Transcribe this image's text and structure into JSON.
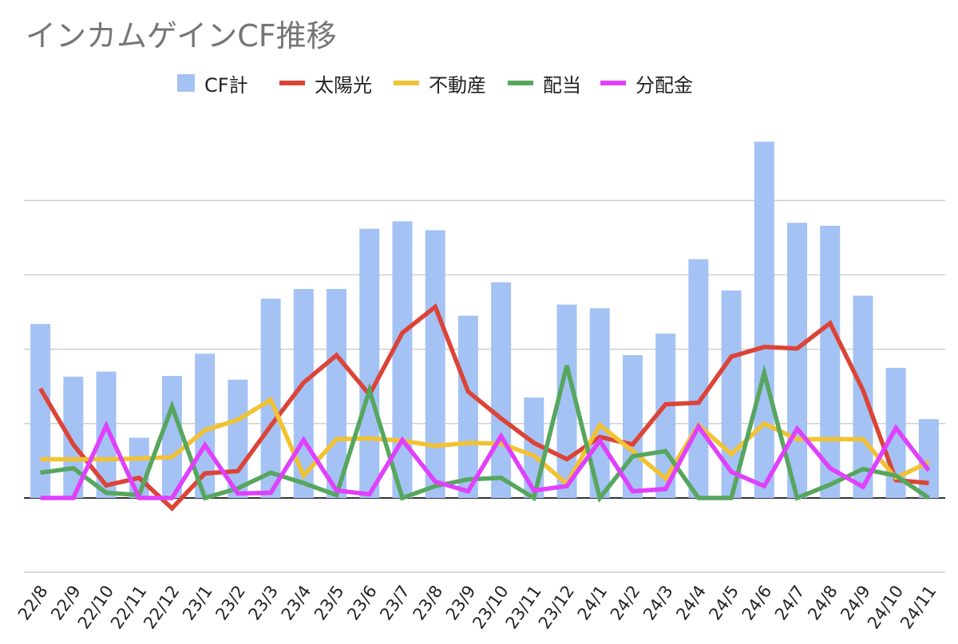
{
  "chart_data": {
    "type": "bar",
    "title": "インカムゲインCF推移",
    "xlabel": "",
    "ylabel": "",
    "ylim": [
      -1,
      4.9
    ],
    "grid": true,
    "y_tick_labels_shown": false,
    "legend_position": "top",
    "categories": [
      "22/8",
      "22/9",
      "22/10",
      "22/11",
      "22/12",
      "23/1",
      "23/2",
      "23/3",
      "23/4",
      "23/5",
      "23/6",
      "23/7",
      "23/8",
      "23/9",
      "23/10",
      "23/11",
      "23/12",
      "24/1",
      "24/2",
      "24/3",
      "24/4",
      "24/5",
      "24/6",
      "24/7",
      "24/8",
      "24/9",
      "24/10",
      "24/11"
    ],
    "series": [
      {
        "name": "CF計",
        "type": "bar",
        "color": "#a4c2f4",
        "values": [
          2.34,
          1.63,
          1.7,
          0.81,
          1.64,
          1.94,
          1.59,
          2.68,
          2.81,
          2.81,
          3.62,
          3.72,
          3.6,
          2.45,
          2.9,
          1.35,
          2.6,
          2.55,
          1.92,
          2.21,
          3.21,
          2.79,
          4.79,
          3.7,
          3.66,
          2.72,
          1.75,
          1.06
        ]
      },
      {
        "name": "太陽光",
        "type": "line",
        "color": "#db4437",
        "values": [
          1.47,
          0.72,
          0.17,
          0.27,
          -0.14,
          0.33,
          0.36,
          0.97,
          1.55,
          1.92,
          1.39,
          2.22,
          2.57,
          1.43,
          1.07,
          0.74,
          0.52,
          0.82,
          0.72,
          1.26,
          1.28,
          1.9,
          2.03,
          2.01,
          2.35,
          1.45,
          0.24,
          0.2
        ]
      },
      {
        "name": "不動産",
        "type": "line",
        "color": "#f1c232",
        "values": [
          0.52,
          0.52,
          0.52,
          0.53,
          0.55,
          0.91,
          1.05,
          1.32,
          0.3,
          0.79,
          0.8,
          0.77,
          0.7,
          0.74,
          0.73,
          0.57,
          0.19,
          0.98,
          0.63,
          0.26,
          0.98,
          0.59,
          1.0,
          0.79,
          0.79,
          0.79,
          0.27,
          0.48
        ]
      },
      {
        "name": "配当",
        "type": "line",
        "color": "#57a65e",
        "values": [
          0.34,
          0.4,
          0.07,
          0.04,
          1.23,
          0.0,
          0.13,
          0.34,
          0.2,
          0.04,
          1.45,
          0.0,
          0.16,
          0.25,
          0.27,
          0.0,
          1.78,
          0.0,
          0.56,
          0.63,
          0.0,
          0.0,
          1.68,
          0.0,
          0.18,
          0.39,
          0.3,
          0.0
        ]
      },
      {
        "name": "分配金",
        "type": "line",
        "color": "#e040fb",
        "values": [
          0.0,
          0.0,
          0.97,
          0.0,
          0.0,
          0.71,
          0.06,
          0.07,
          0.78,
          0.1,
          0.05,
          0.78,
          0.22,
          0.09,
          0.83,
          0.1,
          0.16,
          0.77,
          0.09,
          0.12,
          0.96,
          0.35,
          0.16,
          0.93,
          0.4,
          0.15,
          0.94,
          0.37
        ]
      }
    ]
  }
}
